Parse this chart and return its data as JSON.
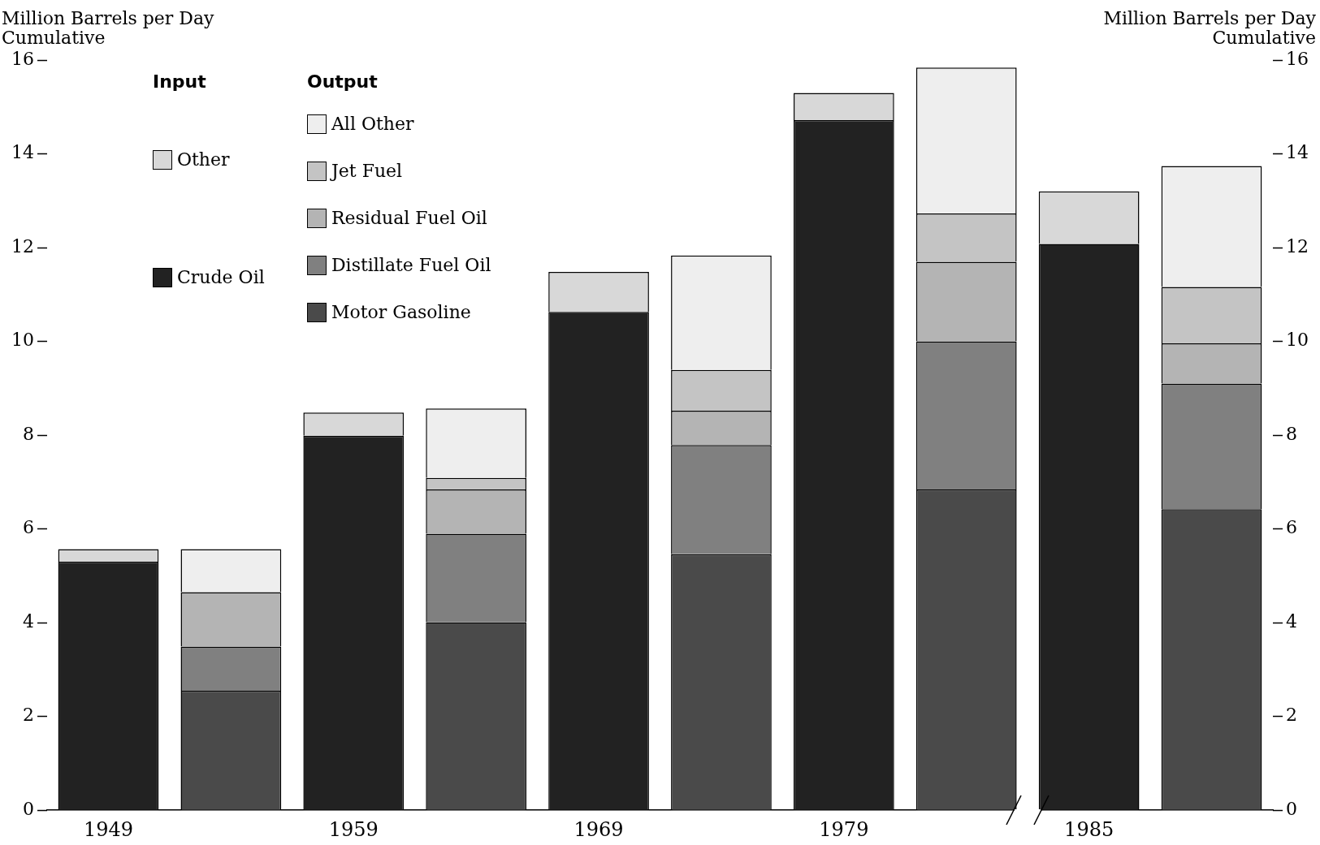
{
  "chart_data": {
    "type": "bar",
    "stacked": true,
    "ylabel": "Million Barrels per Day\nCumulative",
    "y2label": "Million Barrels per Day\nCumulative",
    "annotations": [
      "Input",
      "Output"
    ],
    "categories": [
      "1949",
      null,
      "1959",
      null,
      "1969",
      null,
      "1979",
      null,
      "1985",
      null
    ],
    "series": [
      {
        "name": "Crude Oil",
        "color": "#222222",
        "values": [
          5.3,
          null,
          7.99,
          null,
          10.63,
          null,
          14.72,
          null,
          12.08,
          null
        ]
      },
      {
        "name": "Other",
        "color": "#d8d8d8",
        "values": [
          0.27,
          null,
          0.49,
          null,
          0.85,
          null,
          0.58,
          null,
          1.12,
          null
        ]
      },
      {
        "name": "Motor Gasoline",
        "color": "#4a4a4a",
        "values": [
          null,
          2.55,
          null,
          4.01,
          null,
          5.46,
          null,
          6.84,
          null,
          6.42
        ]
      },
      {
        "name": "Distillate Fuel Oil",
        "color": "#808080",
        "values": [
          null,
          0.94,
          null,
          1.89,
          null,
          2.33,
          null,
          3.16,
          null,
          2.68
        ]
      },
      {
        "name": "Residual Fuel Oil",
        "color": "#b4b4b4",
        "values": [
          null,
          1.16,
          null,
          0.94,
          null,
          0.73,
          null,
          1.7,
          null,
          0.86
        ]
      },
      {
        "name": "Jet Fuel",
        "color": "#c4c4c4",
        "values": [
          null,
          0,
          null,
          0.25,
          null,
          0.87,
          null,
          1.03,
          null,
          1.2
        ]
      },
      {
        "name": "All Other",
        "color": "#eeeeee",
        "values": [
          null,
          0.92,
          null,
          1.48,
          null,
          2.44,
          null,
          3.11,
          null,
          2.58
        ]
      }
    ],
    "ylim": [
      0,
      16
    ],
    "yticks": [
      0,
      2,
      4,
      6,
      8,
      10,
      12,
      14,
      16
    ],
    "y2lim": [
      0,
      16
    ],
    "y2ticks": [
      0,
      2,
      4,
      6,
      8,
      10,
      12,
      14,
      16
    ],
    "grid": false,
    "legend": "top left"
  }
}
